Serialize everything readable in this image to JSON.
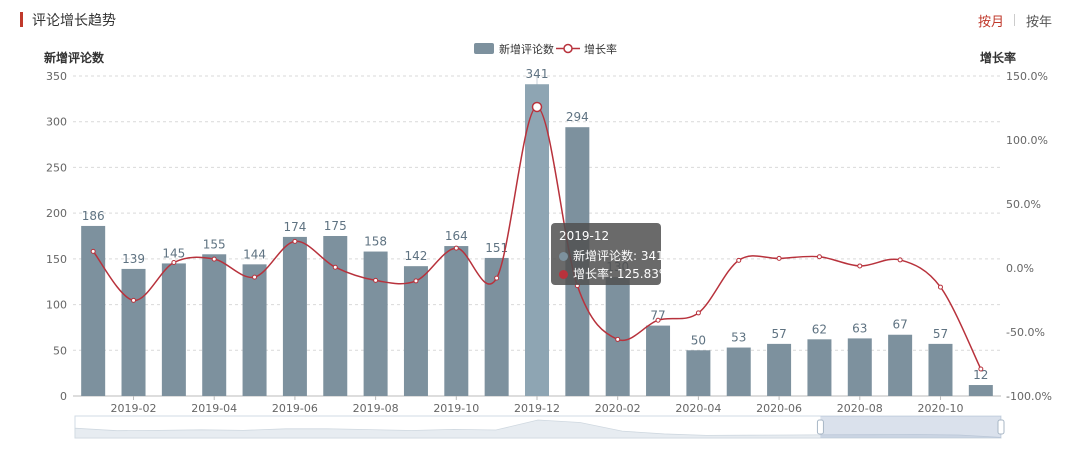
{
  "header": {
    "title": "评论增长趋势",
    "toggle_month": "按月",
    "toggle_year": "按年"
  },
  "tooltip": {
    "title": "2019-12",
    "series1_label": "新增评论数",
    "series1_value": "341",
    "series2_label": "增长率",
    "series2_value": "125.83%"
  },
  "chart_data": {
    "type": "bar+line",
    "categories": [
      "2019-01",
      "2019-02",
      "2019-03",
      "2019-04",
      "2019-05",
      "2019-06",
      "2019-07",
      "2019-08",
      "2019-09",
      "2019-10",
      "2019-11",
      "2019-12",
      "2020-01",
      "2020-02",
      "2020-03",
      "2020-04",
      "2020-05",
      "2020-06",
      "2020-07",
      "2020-08",
      "2020-09",
      "2020-10",
      "2020-11"
    ],
    "x_tick_labels": [
      "2019-02",
      "2019-04",
      "2019-06",
      "2019-08",
      "2019-10",
      "2019-12",
      "2020-02",
      "2020-04",
      "2020-06",
      "2020-08",
      "2020-10"
    ],
    "series": [
      {
        "name": "新增评论数",
        "type": "bar",
        "axis": "left",
        "values": [
          186,
          139,
          145,
          155,
          144,
          174,
          175,
          158,
          142,
          164,
          151,
          341,
          294,
          130,
          77,
          50,
          53,
          57,
          62,
          63,
          67,
          57,
          12
        ]
      },
      {
        "name": "增长率",
        "type": "line",
        "axis": "right",
        "unit": "%",
        "values": [
          13,
          -25.3,
          4.3,
          6.9,
          -7.1,
          20.8,
          0.6,
          -9.7,
          -10.1,
          15.5,
          -7.9,
          125.83,
          -13.8,
          -55.8,
          -40.8,
          -35.1,
          6,
          7.5,
          8.8,
          1.6,
          6.3,
          -14.9,
          -78.9
        ]
      }
    ],
    "title": "评论增长趋势",
    "ylabel_left": "新增评论数",
    "ylabel_right": "增长率",
    "ylim_left": [
      0,
      350
    ],
    "ylim_right": [
      -100,
      150
    ],
    "yticks_left": [
      "0",
      "50",
      "100",
      "150",
      "200",
      "250",
      "300",
      "350"
    ],
    "yticks_right": [
      "-100.0%",
      "-50.0%",
      "0.0%",
      "50.0%",
      "100.0%",
      "150.0%"
    ],
    "legend": [
      "新增评论数",
      "增长率"
    ],
    "highlighted_category": "2019-12",
    "colors": {
      "bar": "#7d919e",
      "bar_highlight": "#8ea5b3",
      "line": "#b8323c",
      "grid": "#d9d9d9",
      "axis_text": "#666666"
    }
  }
}
